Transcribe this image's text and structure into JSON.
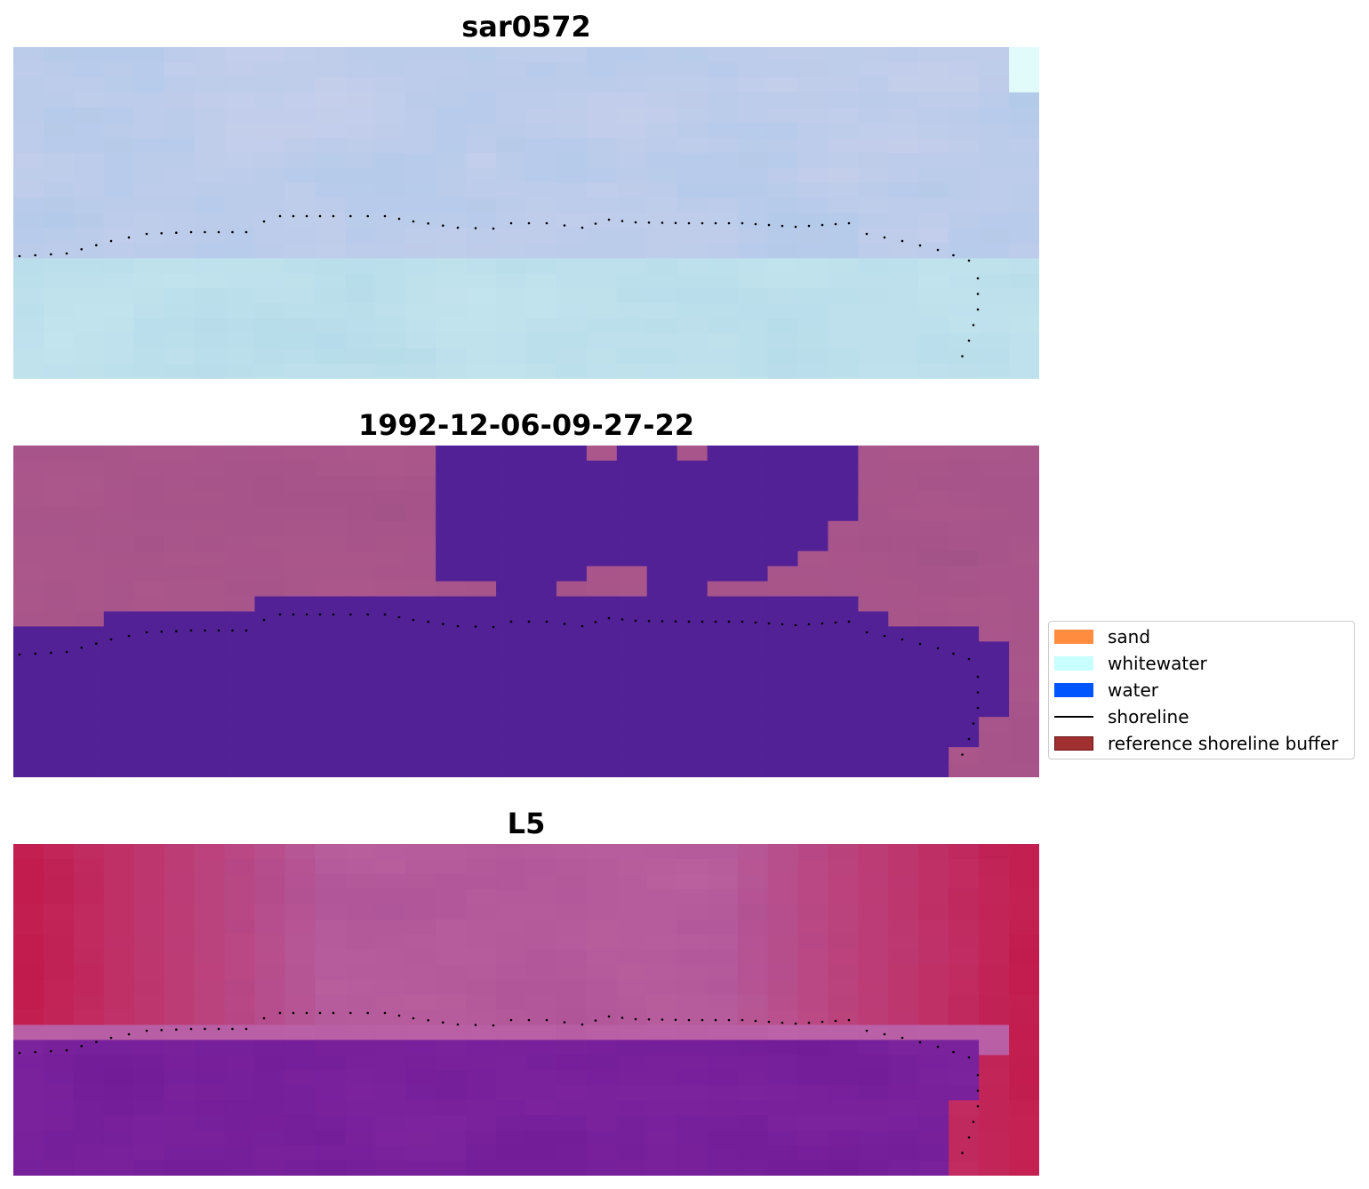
{
  "panels": [
    {
      "title": "sar0572",
      "style": "sar"
    },
    {
      "title": "1992-12-06-09-27-22",
      "style": "classified"
    },
    {
      "title": "L5",
      "style": "index"
    }
  ],
  "legend": {
    "items": [
      {
        "label": "sand",
        "color": "#ff8c3f",
        "kind": "patch",
        "icon": "sand-swatch"
      },
      {
        "label": "whitewater",
        "color": "#c8ffff",
        "kind": "patch",
        "icon": "whitewater-swatch"
      },
      {
        "label": "water",
        "color": "#0055ff",
        "kind": "patch",
        "icon": "water-swatch"
      },
      {
        "label": "shoreline",
        "color": "#000000",
        "kind": "line",
        "icon": "shoreline-line"
      },
      {
        "label": "reference shoreline buffer",
        "color": "#a03030",
        "kind": "patch",
        "icon": "buffer-swatch"
      }
    ]
  },
  "colors": {
    "classified_land": "#b05a8e",
    "classified_water": "#522196",
    "shoreline_dots": "#000000"
  }
}
